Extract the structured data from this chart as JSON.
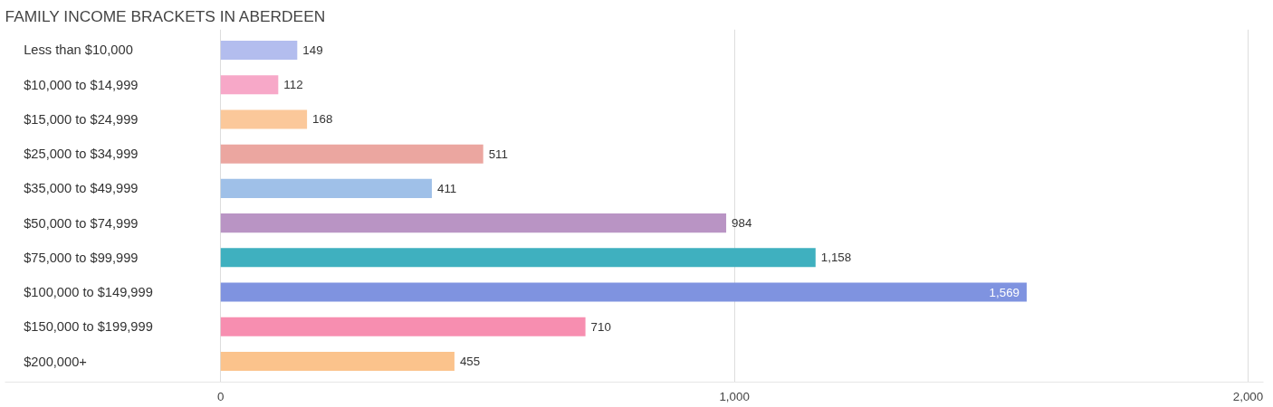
{
  "chart_data": {
    "type": "bar",
    "orientation": "horizontal",
    "title": "FAMILY INCOME BRACKETS IN ABERDEEN",
    "categories": [
      "Less than $10,000",
      "$10,000 to $14,999",
      "$15,000 to $24,999",
      "$25,000 to $34,999",
      "$35,000 to $49,999",
      "$50,000 to $74,999",
      "$75,000 to $99,999",
      "$100,000 to $149,999",
      "$150,000 to $199,999",
      "$200,000+"
    ],
    "values": [
      149,
      112,
      168,
      511,
      411,
      984,
      1158,
      1569,
      710,
      455
    ],
    "colors": [
      "#b3bdee",
      "#f7a8c8",
      "#fbc89a",
      "#eba6a0",
      "#9fc0e8",
      "#b994c4",
      "#3fb0bf",
      "#7f93e0",
      "#f78eb0",
      "#fbc38c"
    ],
    "xlim": [
      -420,
      2030
    ],
    "xticks": [
      0,
      {
        "value": 1000,
        "label": "1,000"
      },
      {
        "value": 2000,
        "label": "2,000"
      }
    ],
    "grid": "x",
    "value_labels": [
      "149",
      "112",
      "168",
      "511",
      "411",
      "984",
      "1,158",
      "1,569",
      "710",
      "455"
    ]
  }
}
